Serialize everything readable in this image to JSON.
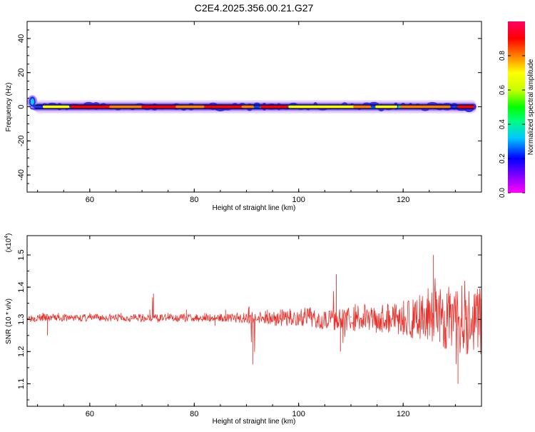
{
  "title": "C2E4.2025.356.00.21.G27",
  "chart_data": [
    {
      "type": "heatmap",
      "xlabel": "Height of straight line (km)",
      "ylabel": "Frequency (Hz)",
      "xlim": [
        48,
        135
      ],
      "ylim": [
        -50,
        50
      ],
      "x_ticks": [
        "60",
        "80",
        "100",
        "120"
      ],
      "x_tick_values": [
        60,
        80,
        100,
        120
      ],
      "y_ticks": [
        "40",
        "20",
        "0",
        "-20",
        "-40"
      ],
      "y_tick_values": [
        40,
        20,
        0,
        -20,
        -40
      ],
      "colorbar": {
        "label": "Normalized spectral amplitude",
        "range": [
          0,
          1
        ],
        "ticks": [
          "0.0",
          "0.2",
          "0.4",
          "0.6",
          "0.8"
        ],
        "tick_values": [
          0.0,
          0.2,
          0.4,
          0.6,
          0.8
        ],
        "colors": [
          "#ff00ff",
          "#8000ff",
          "#0000ff",
          "#00c8ff",
          "#00ff80",
          "#00ff00",
          "#c8ff00",
          "#ffff00",
          "#ff8000",
          "#ff0000",
          "#ff0064"
        ]
      },
      "ridge_frequency": 0,
      "band_frequency": [
        -1,
        1
      ],
      "onset_peak": {
        "x": 49,
        "frequency": 5
      },
      "colors": {
        "frame": "#000000",
        "background": "#ffffff"
      }
    },
    {
      "type": "line",
      "xlabel": "Height of straight line (km)",
      "ylabel": "SNR (10 * v/v)",
      "y_multiplier": "(x10",
      "y_multiplier_exp": "4",
      "y_multiplier_close": ")",
      "xlim": [
        48,
        135
      ],
      "ylim": [
        1.03,
        1.56
      ],
      "x_ticks": [
        "60",
        "80",
        "100",
        "120"
      ],
      "x_tick_values": [
        60,
        80,
        100,
        120
      ],
      "y_ticks": [
        "1.5",
        "1.4",
        "1.3",
        "1.2",
        "1.1"
      ],
      "y_tick_values": [
        1.5,
        1.4,
        1.3,
        1.2,
        1.1
      ],
      "series": [
        {
          "color": "#e8302a",
          "x": [
            48.0,
            49.5,
            51.0,
            51.9,
            52.6,
            54.0,
            56.0,
            58.0,
            60.0,
            62.0,
            64.0,
            66.0,
            68.0,
            70.0,
            71.5,
            72.2,
            73.0,
            75.0,
            77.0,
            78.5,
            80.0,
            82.0,
            84.0,
            86.0,
            88.0,
            89.5,
            90.5,
            91.2,
            92.5,
            94.0,
            95.5,
            96.5,
            98.0,
            100.0,
            102.0,
            104.0,
            106.0,
            107.2,
            108.0,
            110.0,
            112.0,
            114.0,
            116.0,
            118.0,
            120.0,
            122.0,
            124.0,
            125.8,
            127.0,
            129.0,
            130.5,
            132.0,
            134.0,
            135.0
          ],
          "values": [
            1.31,
            1.3,
            1.32,
            1.25,
            1.3,
            1.32,
            1.31,
            1.3,
            1.32,
            1.31,
            1.3,
            1.32,
            1.3,
            1.31,
            1.33,
            1.38,
            1.29,
            1.32,
            1.3,
            1.33,
            1.3,
            1.32,
            1.28,
            1.33,
            1.29,
            1.31,
            1.34,
            1.16,
            1.3,
            1.33,
            1.28,
            1.33,
            1.31,
            1.3,
            1.33,
            1.29,
            1.32,
            1.44,
            1.2,
            1.31,
            1.3,
            1.33,
            1.26,
            1.34,
            1.3,
            1.27,
            1.32,
            1.5,
            1.23,
            1.38,
            1.1,
            1.36,
            1.3,
            1.28
          ]
        }
      ],
      "colors": {
        "frame": "#000000",
        "background": "#ffffff"
      }
    }
  ]
}
